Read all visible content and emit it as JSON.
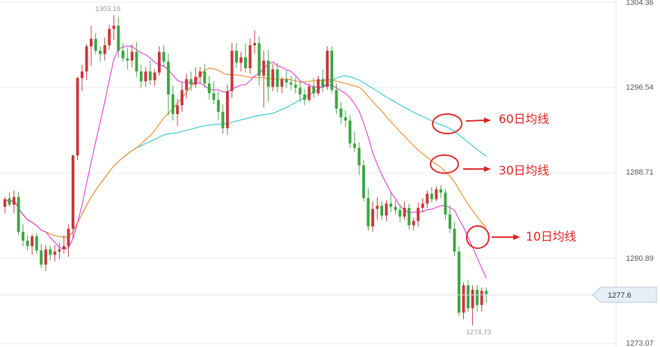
{
  "chart_data": {
    "type": "candlestick",
    "y_axis": {
      "min": 1273.07,
      "max": 1304.36,
      "tick_labels": [
        "1304.36",
        "1296.54",
        "1288.71",
        "1280.89",
        "1273.07"
      ]
    },
    "current_price": "1277.6",
    "annotations": {
      "high": "1303.19",
      "low": "1274.73",
      "ma60": "60日均线",
      "ma30": "30日均线",
      "ma10": "10日均线"
    },
    "colors": {
      "up": "#c8353a",
      "down": "#3aa63f",
      "ma10": "#e040d8",
      "ma30": "#f08a2c",
      "ma60": "#2ec8d0",
      "annotation": "#e02020"
    },
    "candles": [
      [
        1285.6,
        1286.5,
        1285.0,
        1286.3
      ],
      [
        1286.4,
        1286.9,
        1285.6,
        1285.8
      ],
      [
        1285.8,
        1287.1,
        1285.0,
        1286.5
      ],
      [
        1286.5,
        1287.0,
        1283.0,
        1283.3
      ],
      [
        1283.3,
        1284.0,
        1282.0,
        1282.5
      ],
      [
        1282.5,
        1283.0,
        1281.6,
        1282.0
      ],
      [
        1282.0,
        1283.1,
        1281.2,
        1282.9
      ],
      [
        1282.9,
        1283.2,
        1281.3,
        1281.6
      ],
      [
        1281.6,
        1282.2,
        1280.0,
        1280.3
      ],
      [
        1280.3,
        1282.1,
        1279.7,
        1281.7
      ],
      [
        1281.7,
        1282.0,
        1280.7,
        1281.2
      ],
      [
        1281.2,
        1282.1,
        1280.6,
        1281.5
      ],
      [
        1281.5,
        1282.3,
        1280.8,
        1281.7
      ],
      [
        1281.7,
        1283.0,
        1281.3,
        1282.0
      ],
      [
        1282.0,
        1284.0,
        1281.0,
        1283.6
      ],
      [
        1283.6,
        1290.4,
        1282.7,
        1290.3
      ],
      [
        1290.3,
        1297.5,
        1289.9,
        1297.4
      ],
      [
        1297.4,
        1298.6,
        1296.2,
        1298.0
      ],
      [
        1298.0,
        1300.5,
        1297.2,
        1300.3
      ],
      [
        1300.3,
        1302.2,
        1298.5,
        1301.0
      ],
      [
        1301.0,
        1301.5,
        1299.6,
        1299.9
      ],
      [
        1299.9,
        1300.3,
        1298.9,
        1299.6
      ],
      [
        1299.6,
        1301.1,
        1299.0,
        1300.4
      ],
      [
        1300.4,
        1302.3,
        1300.0,
        1301.9
      ],
      [
        1301.9,
        1303.19,
        1300.9,
        1302.2
      ],
      [
        1302.2,
        1303.0,
        1299.3,
        1299.9
      ],
      [
        1299.9,
        1300.6,
        1298.9,
        1299.2
      ],
      [
        1299.2,
        1300.2,
        1298.2,
        1299.0
      ],
      [
        1299.0,
        1300.5,
        1298.4,
        1299.8
      ],
      [
        1299.8,
        1300.7,
        1297.5,
        1298.0
      ],
      [
        1298.0,
        1298.6,
        1296.5,
        1297.1
      ],
      [
        1297.1,
        1298.4,
        1296.6,
        1298.0
      ],
      [
        1298.0,
        1299.0,
        1296.8,
        1297.2
      ],
      [
        1297.2,
        1298.2,
        1296.7,
        1297.9
      ],
      [
        1297.9,
        1300.3,
        1297.6,
        1299.8
      ],
      [
        1299.8,
        1300.4,
        1298.4,
        1298.9
      ],
      [
        1298.9,
        1299.6,
        1294.0,
        1295.9
      ],
      [
        1295.9,
        1296.7,
        1293.5,
        1294.1
      ],
      [
        1294.1,
        1295.5,
        1293.0,
        1294.9
      ],
      [
        1294.9,
        1297.0,
        1294.3,
        1296.3
      ],
      [
        1296.3,
        1297.8,
        1295.5,
        1297.3
      ],
      [
        1297.3,
        1298.0,
        1296.2,
        1296.8
      ],
      [
        1296.8,
        1298.4,
        1296.5,
        1297.5
      ],
      [
        1297.5,
        1298.4,
        1296.9,
        1298.0
      ],
      [
        1298.0,
        1298.7,
        1296.5,
        1296.9
      ],
      [
        1296.9,
        1297.6,
        1295.4,
        1296.0
      ],
      [
        1296.0,
        1297.1,
        1295.0,
        1295.4
      ],
      [
        1295.4,
        1296.2,
        1293.5,
        1294.3
      ],
      [
        1294.3,
        1295.0,
        1292.3,
        1292.8
      ],
      [
        1292.8,
        1296.8,
        1292.2,
        1296.2
      ],
      [
        1296.2,
        1300.6,
        1295.6,
        1299.9
      ],
      [
        1299.9,
        1300.6,
        1298.3,
        1298.8
      ],
      [
        1298.8,
        1299.8,
        1298.0,
        1299.3
      ],
      [
        1299.3,
        1300.6,
        1297.9,
        1298.3
      ],
      [
        1298.3,
        1301.0,
        1297.8,
        1300.4
      ],
      [
        1300.4,
        1301.8,
        1299.6,
        1300.6
      ],
      [
        1300.6,
        1301.2,
        1296.7,
        1297.6
      ],
      [
        1297.6,
        1299.9,
        1294.7,
        1299.0
      ],
      [
        1299.0,
        1300.0,
        1295.2,
        1296.6
      ],
      [
        1296.6,
        1298.7,
        1296.2,
        1298.2
      ],
      [
        1298.2,
        1298.8,
        1296.1,
        1296.6
      ],
      [
        1296.6,
        1297.5,
        1296.0,
        1297.3
      ],
      [
        1297.3,
        1298.1,
        1296.5,
        1297.0
      ],
      [
        1297.0,
        1297.6,
        1296.3,
        1296.8
      ],
      [
        1296.8,
        1297.5,
        1296.0,
        1296.5
      ],
      [
        1296.5,
        1297.1,
        1295.2,
        1295.9
      ],
      [
        1295.9,
        1296.4,
        1294.9,
        1295.4
      ],
      [
        1295.4,
        1296.9,
        1295.2,
        1296.6
      ],
      [
        1296.6,
        1297.4,
        1295.6,
        1296.0
      ],
      [
        1296.0,
        1297.6,
        1295.8,
        1297.3
      ],
      [
        1297.3,
        1298.2,
        1296.1,
        1296.6
      ],
      [
        1296.6,
        1300.3,
        1296.3,
        1299.9
      ],
      [
        1299.9,
        1300.3,
        1296.0,
        1296.3
      ],
      [
        1296.3,
        1296.9,
        1294.1,
        1294.6
      ],
      [
        1294.6,
        1295.2,
        1293.2,
        1293.8
      ],
      [
        1293.8,
        1294.4,
        1292.9,
        1293.5
      ],
      [
        1293.5,
        1294.0,
        1291.0,
        1291.4
      ],
      [
        1291.4,
        1292.5,
        1290.6,
        1291.0
      ],
      [
        1291.0,
        1291.5,
        1288.5,
        1289.4
      ],
      [
        1289.4,
        1289.9,
        1286.1,
        1286.4
      ],
      [
        1286.4,
        1287.3,
        1283.4,
        1283.8
      ],
      [
        1283.8,
        1286.1,
        1283.3,
        1285.4
      ],
      [
        1285.4,
        1286.5,
        1284.4,
        1285.7
      ],
      [
        1285.7,
        1286.1,
        1284.4,
        1284.8
      ],
      [
        1284.8,
        1286.2,
        1284.3,
        1285.9
      ],
      [
        1285.9,
        1286.9,
        1285.1,
        1285.6
      ],
      [
        1285.6,
        1286.2,
        1284.9,
        1285.3
      ],
      [
        1285.3,
        1285.8,
        1284.2,
        1284.7
      ],
      [
        1284.7,
        1286.1,
        1284.4,
        1285.5
      ],
      [
        1285.5,
        1285.9,
        1283.5,
        1283.9
      ],
      [
        1283.9,
        1284.6,
        1283.4,
        1284.3
      ],
      [
        1284.3,
        1286.0,
        1283.8,
        1285.5
      ],
      [
        1285.5,
        1286.4,
        1285.1,
        1285.9
      ],
      [
        1285.9,
        1287.1,
        1285.5,
        1286.8
      ],
      [
        1286.8,
        1287.4,
        1286.0,
        1286.3
      ],
      [
        1286.3,
        1287.5,
        1286.1,
        1287.2
      ],
      [
        1287.2,
        1287.6,
        1286.4,
        1286.9
      ],
      [
        1286.9,
        1287.2,
        1284.4,
        1284.9
      ],
      [
        1284.9,
        1285.7,
        1283.2,
        1283.6
      ],
      [
        1283.6,
        1284.2,
        1281.1,
        1281.5
      ],
      [
        1281.5,
        1282.0,
        1275.6,
        1275.9
      ],
      [
        1275.9,
        1278.7,
        1275.3,
        1278.4
      ],
      [
        1278.4,
        1278.9,
        1276.0,
        1276.3
      ],
      [
        1276.3,
        1278.4,
        1274.73,
        1278.0
      ],
      [
        1278.0,
        1278.4,
        1276.0,
        1276.6
      ],
      [
        1276.6,
        1278.2,
        1276.0,
        1277.9
      ],
      [
        1277.9,
        1278.2,
        1276.8,
        1277.6
      ]
    ]
  }
}
